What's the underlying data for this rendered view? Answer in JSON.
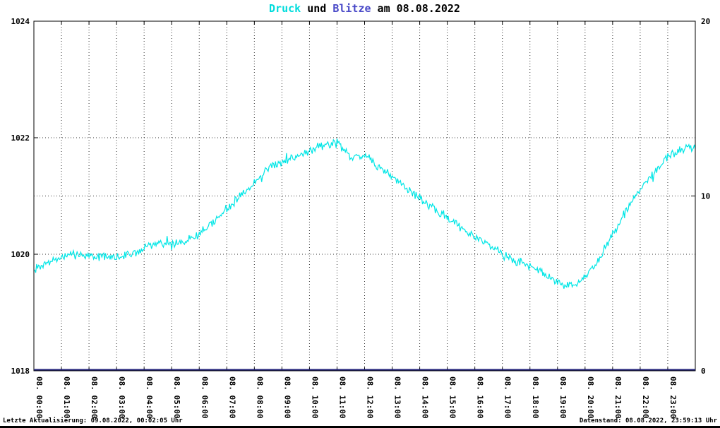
{
  "title": {
    "parts": [
      {
        "text": "Druck",
        "color": "#00dcdc"
      },
      {
        "text": " und ",
        "color": "#000000"
      },
      {
        "text": "Blitze",
        "color": "#4a4ac8"
      },
      {
        "text": " am 08.08.2022",
        "color": "#000000"
      }
    ]
  },
  "footer": {
    "left": "Letzte Aktualisierung: 09.08.2022, 00:02:05 Uhr",
    "right": "Datenstand: 08.08.2022, 23:59:13 Uhr"
  },
  "chart_data": {
    "type": "line",
    "title": "Druck und Blitze am 08.08.2022",
    "grid": {
      "on": true,
      "style": "dotted",
      "h_left_values": [
        1020,
        1022
      ],
      "h_right_values": [
        10
      ]
    },
    "x_range_hours": [
      0,
      24
    ],
    "x_tick_labels": [
      "08. 00:00",
      "08. 01:00",
      "08. 02:00",
      "08. 03:00",
      "08. 04:00",
      "08. 05:00",
      "08. 06:00",
      "08. 07:00",
      "08. 08:00",
      "08. 09:00",
      "08. 10:00",
      "08. 11:00",
      "08. 12:00",
      "08. 13:00",
      "08. 14:00",
      "08. 15:00",
      "08. 16:00",
      "08. 17:00",
      "08. 18:00",
      "08. 19:00",
      "08. 20:00",
      "08. 21:00",
      "08. 22:00",
      "08. 23:00"
    ],
    "y_left": {
      "range": [
        1018,
        1024
      ],
      "ticks": [
        1018,
        1020,
        1022,
        1024
      ],
      "series": "Druck"
    },
    "y_right": {
      "range": [
        0,
        20
      ],
      "ticks": [
        0,
        10,
        20
      ],
      "series": "Blitze"
    },
    "noise_seed": 7,
    "series": [
      {
        "name": "Druck",
        "axis": "left",
        "color": "#00e6e6",
        "line_width": 1.2,
        "x_step_hours": 0.5,
        "noise_amplitude": 0.09,
        "values": [
          1019.72,
          1019.85,
          1019.95,
          1020.0,
          1019.98,
          1019.96,
          1019.93,
          1020.0,
          1020.1,
          1020.22,
          1020.15,
          1020.22,
          1020.35,
          1020.55,
          1020.78,
          1021.0,
          1021.22,
          1021.45,
          1021.6,
          1021.68,
          1021.8,
          1021.86,
          1021.92,
          1021.68,
          1021.72,
          1021.5,
          1021.32,
          1021.15,
          1020.96,
          1020.78,
          1020.62,
          1020.46,
          1020.3,
          1020.18,
          1020.0,
          1019.88,
          1019.8,
          1019.68,
          1019.52,
          1019.45,
          1019.6,
          1019.9,
          1020.35,
          1020.75,
          1021.12,
          1021.4,
          1021.68,
          1021.78,
          1021.85
        ]
      },
      {
        "name": "Blitze",
        "axis": "right",
        "color": "#22227a",
        "line_width": 2,
        "constant": 0
      }
    ]
  }
}
